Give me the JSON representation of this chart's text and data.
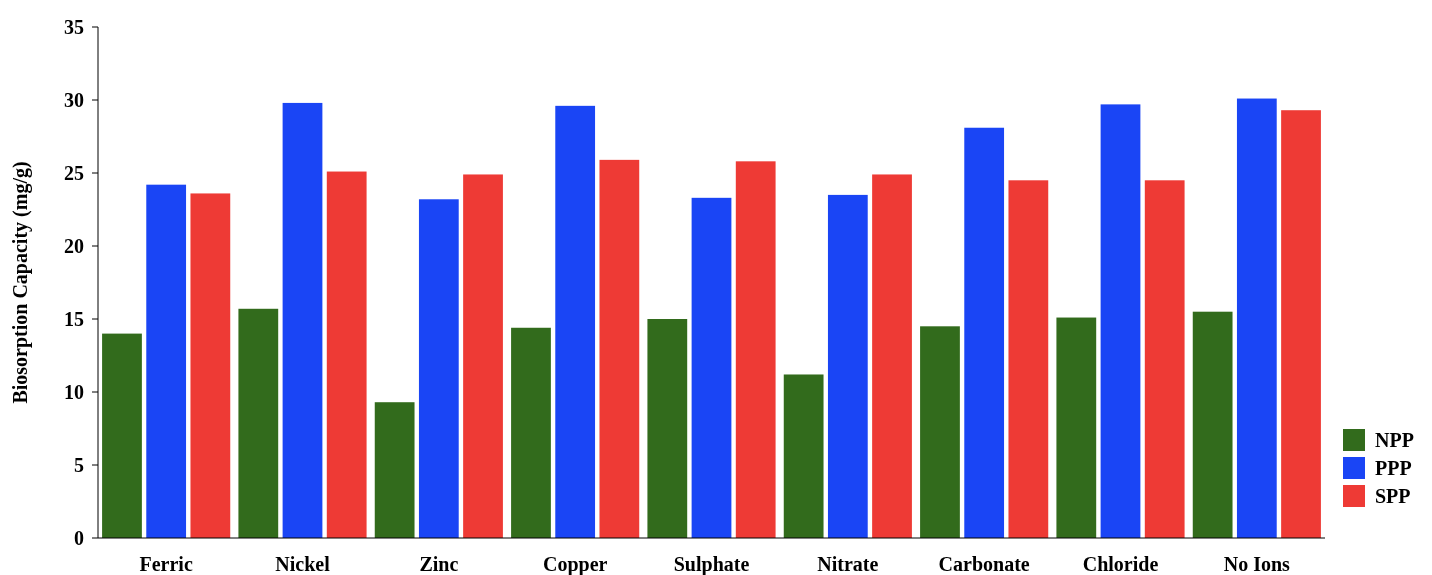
{
  "chart_data": {
    "type": "bar",
    "ylabel": "Biosorption Capacity (mg/g)",
    "categories": [
      "Ferric",
      "Nickel",
      "Zinc",
      "Copper",
      "Sulphate",
      "Nitrate",
      "Carbonate",
      "Chloride",
      "No Ions"
    ],
    "series": [
      {
        "name": "NPP",
        "color": "#326b1c",
        "values": [
          14.0,
          15.7,
          9.3,
          14.4,
          15.0,
          11.2,
          14.5,
          15.1,
          15.5
        ]
      },
      {
        "name": "PPP",
        "color": "#1a45f5",
        "values": [
          24.2,
          29.8,
          23.2,
          29.6,
          23.3,
          23.5,
          28.1,
          29.7,
          30.1
        ]
      },
      {
        "name": "SPP",
        "color": "#ee3a35",
        "values": [
          23.6,
          25.1,
          24.9,
          25.9,
          25.8,
          24.9,
          24.5,
          24.5,
          29.3
        ]
      }
    ],
    "ylim": [
      0,
      35
    ],
    "yticks": [
      0,
      5,
      10,
      15,
      20,
      25,
      30,
      35
    ],
    "grid": false,
    "legend": "bottom right"
  }
}
